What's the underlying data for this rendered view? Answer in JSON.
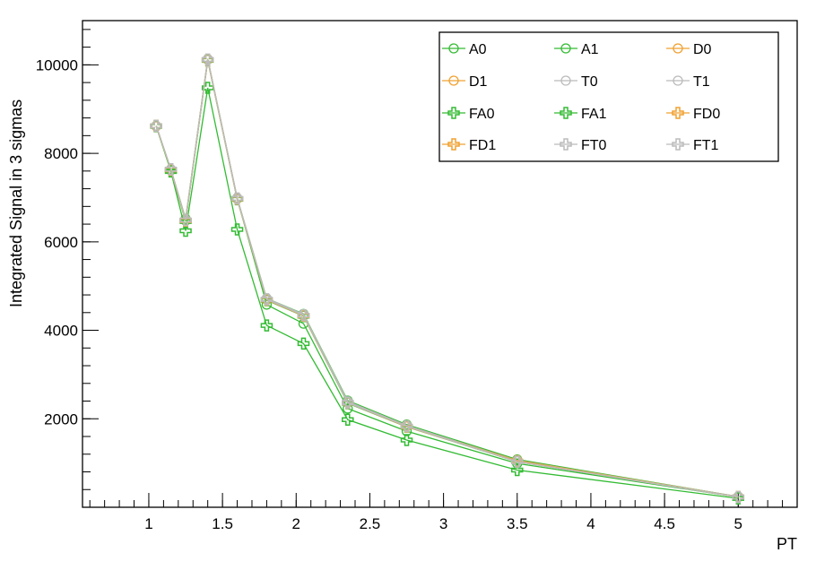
{
  "chart_data": {
    "type": "line",
    "xlabel": "PT",
    "ylabel": "Integrated  Signal  in  3  sigmas",
    "xlim": [
      0.55,
      5.4
    ],
    "ylim": [
      0,
      11000
    ],
    "x_ticks": [
      1,
      1.5,
      2,
      2.5,
      3,
      3.5,
      4,
      4.5,
      5
    ],
    "y_ticks": [
      2000,
      4000,
      6000,
      8000,
      10000
    ],
    "grid": false,
    "legend_position": "top-right",
    "x": [
      1.05,
      1.15,
      1.25,
      1.4,
      1.6,
      1.8,
      2.05,
      2.35,
      2.75,
      3.5,
      5
    ],
    "series": [
      {
        "name": "A0",
        "color": "#33bb33",
        "marker": "open-circle",
        "values": [
          8620,
          7620,
          6480,
          10120,
          6980,
          4580,
          4150,
          2230,
          1720,
          990,
          230
        ]
      },
      {
        "name": "A1",
        "color": "#33bb33",
        "marker": "open-circle",
        "values": [
          8620,
          7640,
          6520,
          10130,
          6990,
          4720,
          4370,
          2410,
          1870,
          1080,
          240
        ]
      },
      {
        "name": "D0",
        "color": "#f0a030",
        "marker": "open-circle",
        "values": [
          8620,
          7640,
          6500,
          10130,
          6980,
          4700,
          4340,
          2380,
          1840,
          1060,
          240
        ]
      },
      {
        "name": "D1",
        "color": "#f0a030",
        "marker": "open-circle",
        "values": [
          8610,
          7630,
          6490,
          10120,
          6970,
          4690,
          4330,
          2370,
          1830,
          1050,
          235
        ]
      },
      {
        "name": "T0",
        "color": "#bbbbbb",
        "marker": "open-circle",
        "values": [
          8620,
          7640,
          6500,
          10130,
          6990,
          4720,
          4360,
          2390,
          1850,
          1050,
          240
        ]
      },
      {
        "name": "T1",
        "color": "#bbbbbb",
        "marker": "open-circle",
        "values": [
          8620,
          7640,
          6500,
          10130,
          6990,
          4710,
          4350,
          2380,
          1840,
          1040,
          240
        ]
      },
      {
        "name": "FA0",
        "color": "#33bb33",
        "marker": "open-cross",
        "values": [
          8610,
          7590,
          6250,
          9480,
          6280,
          4110,
          3700,
          1980,
          1520,
          840,
          200
        ]
      },
      {
        "name": "FA1",
        "color": "#33bb33",
        "marker": "open-cross",
        "values": [
          8620,
          7620,
          6460,
          10100,
          6960,
          4680,
          4320,
          2350,
          1820,
          1030,
          230
        ]
      },
      {
        "name": "FD0",
        "color": "#f0a030",
        "marker": "open-cross",
        "values": [
          8620,
          7630,
          6480,
          10110,
          6970,
          4690,
          4330,
          2360,
          1820,
          1040,
          230
        ]
      },
      {
        "name": "FD1",
        "color": "#f0a030",
        "marker": "open-cross",
        "values": [
          8620,
          7630,
          6480,
          10110,
          6970,
          4690,
          4330,
          2360,
          1830,
          1040,
          230
        ]
      },
      {
        "name": "FT0",
        "color": "#bbbbbb",
        "marker": "open-cross",
        "values": [
          8620,
          7640,
          6490,
          10120,
          6980,
          4700,
          4340,
          2370,
          1830,
          1030,
          230
        ]
      },
      {
        "name": "FT1",
        "color": "#bbbbbb",
        "marker": "open-cross",
        "values": [
          8620,
          7640,
          6490,
          10120,
          6980,
          4700,
          4340,
          2360,
          1830,
          1030,
          230
        ]
      }
    ]
  }
}
